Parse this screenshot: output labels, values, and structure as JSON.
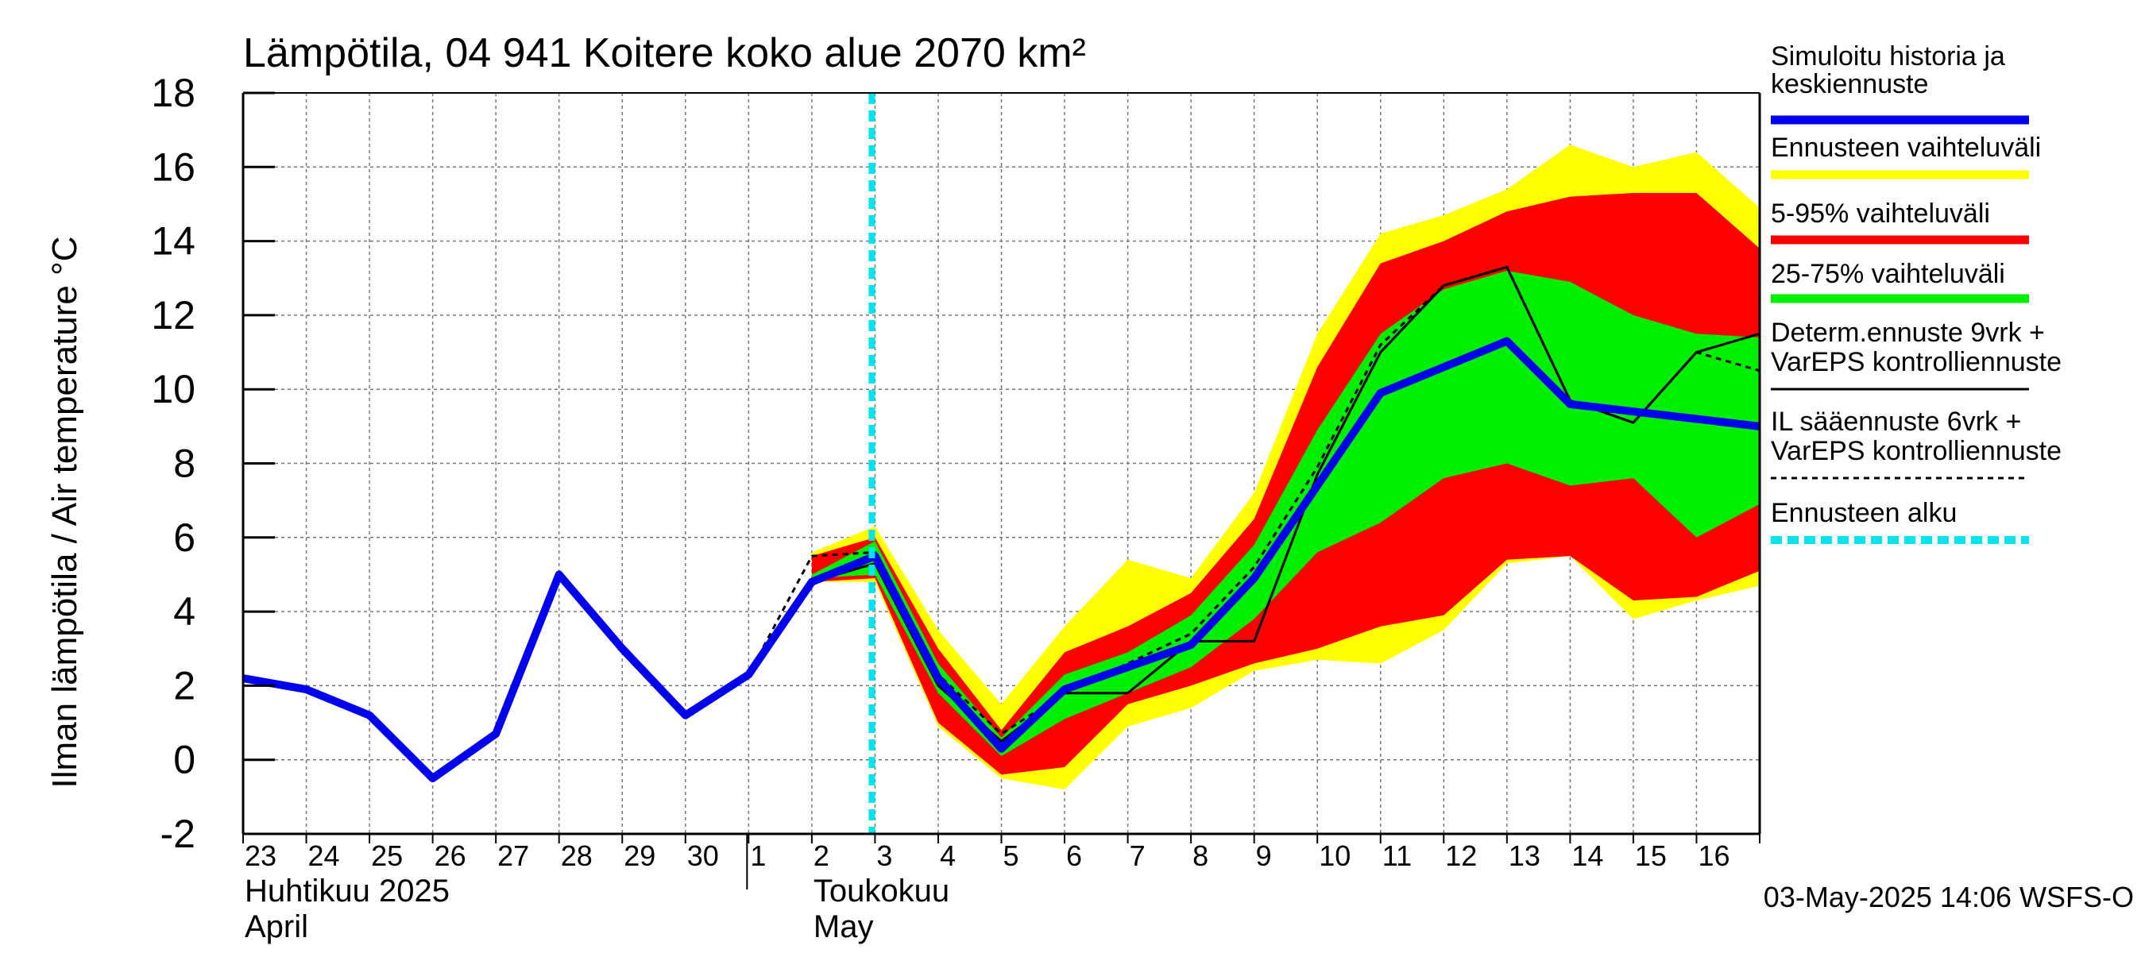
{
  "chart_data": {
    "type": "area",
    "title": "Lämpötila, 04 941 Koitere koko alue 2070 km²",
    "ylabel": "Ilman lämpötila / Air temperature   °C",
    "ylim": [
      -2,
      18
    ],
    "yticks": [
      -2,
      0,
      2,
      4,
      6,
      8,
      10,
      12,
      14,
      16,
      18
    ],
    "xlim": [
      0,
      24
    ],
    "grid": true,
    "x_tick_labels": [
      {
        "x": 0,
        "label": "23"
      },
      {
        "x": 1,
        "label": "24"
      },
      {
        "x": 2,
        "label": "25"
      },
      {
        "x": 3,
        "label": "26"
      },
      {
        "x": 4,
        "label": "27"
      },
      {
        "x": 5,
        "label": "28"
      },
      {
        "x": 6,
        "label": "29"
      },
      {
        "x": 7,
        "label": "30"
      },
      {
        "x": 8,
        "label": "1"
      },
      {
        "x": 9,
        "label": "2"
      },
      {
        "x": 10,
        "label": "3"
      },
      {
        "x": 11,
        "label": "4"
      },
      {
        "x": 12,
        "label": "5"
      },
      {
        "x": 13,
        "label": "6"
      },
      {
        "x": 14,
        "label": "7"
      },
      {
        "x": 15,
        "label": "8"
      },
      {
        "x": 16,
        "label": "9"
      },
      {
        "x": 17,
        "label": "10"
      },
      {
        "x": 18,
        "label": "11"
      },
      {
        "x": 19,
        "label": "12"
      },
      {
        "x": 20,
        "label": "13"
      },
      {
        "x": 21,
        "label": "14"
      },
      {
        "x": 22,
        "label": "15"
      },
      {
        "x": 23,
        "label": "16"
      }
    ],
    "month_labels": [
      {
        "x": 0,
        "line1": "Huhtikuu  2025",
        "line2": "April"
      },
      {
        "x": 9,
        "line1": "Toukokuu",
        "line2": "May"
      }
    ],
    "forecast_start_x": 10,
    "bands": [
      {
        "name": "Ennusteen vaihteluväli",
        "color": "#ffff00",
        "x": [
          9,
          10,
          11,
          12,
          13,
          14,
          15,
          16,
          17,
          18,
          19,
          20,
          21,
          22,
          23,
          24
        ],
        "upper": [
          5.6,
          6.3,
          3.5,
          1.5,
          3.6,
          5.4,
          4.9,
          7.2,
          11.5,
          14.2,
          14.7,
          15.4,
          16.6,
          16.0,
          16.4,
          14.9
        ],
        "lower": [
          4.8,
          4.8,
          0.9,
          -0.5,
          -0.8,
          0.9,
          1.4,
          2.4,
          2.7,
          2.6,
          3.5,
          5.3,
          5.5,
          3.8,
          4.3,
          4.7
        ]
      },
      {
        "name": "5-95% vaihteluväli",
        "color": "#ff0000",
        "x": [
          9,
          10,
          11,
          12,
          13,
          14,
          15,
          16,
          17,
          18,
          19,
          20,
          21,
          22,
          23,
          24
        ],
        "upper": [
          5.5,
          6.0,
          3.0,
          0.8,
          2.9,
          3.6,
          4.5,
          6.5,
          10.6,
          13.4,
          14.0,
          14.8,
          15.2,
          15.3,
          15.3,
          13.8
        ],
        "lower": [
          4.8,
          4.9,
          1.0,
          -0.4,
          -0.2,
          1.5,
          2.0,
          2.6,
          3.0,
          3.6,
          3.9,
          5.4,
          5.5,
          4.3,
          4.4,
          5.1
        ]
      },
      {
        "name": "25-75% vaihteluväli",
        "color": "#00ee00",
        "x": [
          9,
          10,
          11,
          12,
          13,
          14,
          15,
          16,
          17,
          18,
          19,
          20,
          21,
          22,
          23,
          24
        ],
        "upper": [
          5.0,
          5.9,
          2.6,
          0.6,
          2.3,
          2.9,
          3.9,
          5.8,
          8.9,
          11.5,
          12.7,
          13.2,
          12.9,
          12.0,
          11.5,
          11.4
        ],
        "lower": [
          4.9,
          5.0,
          1.8,
          0.1,
          1.1,
          1.8,
          2.5,
          3.8,
          5.6,
          6.4,
          7.6,
          8.0,
          7.4,
          7.6,
          6.0,
          6.9
        ]
      }
    ],
    "series": [
      {
        "name": "Simuloitu historia ja keskiennuste",
        "color": "#0000ee",
        "x": [
          0,
          1,
          2,
          3,
          4,
          5,
          6,
          7,
          8,
          9,
          10,
          11,
          12,
          13,
          14,
          15,
          16,
          17,
          18,
          19,
          20,
          21,
          22,
          23,
          24
        ],
        "y": [
          2.2,
          1.9,
          1.2,
          -0.5,
          0.7,
          5.0,
          3.0,
          1.2,
          2.3,
          4.8,
          5.5,
          2.2,
          0.3,
          1.9,
          2.5,
          3.1,
          4.9,
          7.4,
          9.9,
          10.6,
          11.3,
          9.6,
          9.4,
          9.2,
          9.0
        ]
      },
      {
        "name": "Determ.ennuste 9vrk + VarEPS kontrolliennuste",
        "color": "#000000",
        "x": [
          8,
          9,
          10,
          11,
          12,
          13,
          14,
          15,
          16,
          17,
          18,
          19,
          20,
          21,
          22,
          23,
          24
        ],
        "y": [
          2.3,
          4.8,
          5.3,
          2.0,
          0.5,
          1.8,
          1.8,
          3.2,
          3.2,
          7.7,
          11.0,
          12.8,
          13.3,
          9.7,
          9.1,
          11.0,
          11.5
        ]
      },
      {
        "name": "IL sääennuste 6vrk  +   VarEPS kontrolliennuste",
        "color": "#000000",
        "dashed": true,
        "x": [
          8,
          9,
          10,
          11,
          12,
          13,
          14,
          15,
          16,
          17,
          18,
          19,
          20,
          21,
          22,
          23,
          24
        ],
        "y": [
          2.3,
          5.5,
          5.6,
          2.3,
          0.7,
          1.8,
          2.6,
          3.4,
          5.2,
          7.9,
          11.2,
          12.8,
          13.3,
          9.7,
          9.1,
          11.0,
          10.5
        ]
      }
    ],
    "legend": {
      "placement": "right",
      "entries": [
        {
          "text1": "Simuloitu historia ja",
          "text2": "keskiennuste",
          "style": "thick",
          "color": "#0000ee"
        },
        {
          "text1": "Ennusteen vaihteluväli",
          "text2": "",
          "style": "thick",
          "color": "#ffff00"
        },
        {
          "text1": "5-95% vaihteluväli",
          "text2": "",
          "style": "thick",
          "color": "#ff0000"
        },
        {
          "text1": "25-75% vaihteluväli",
          "text2": "",
          "style": "thick",
          "color": "#00ee00"
        },
        {
          "text1": "Determ.ennuste 9vrk +",
          "text2": "VarEPS kontrolliennuste",
          "style": "thin",
          "color": "#000000"
        },
        {
          "text1": "IL sääennuste 6vrk  +",
          "text2": "  VarEPS kontrolliennuste",
          "style": "dashed",
          "color": "#000000"
        },
        {
          "text1": "Ennusteen alku",
          "text2": "",
          "style": "cyan-dashed",
          "color": "#00e5ee"
        }
      ]
    },
    "footer": "03-May-2025 14:06 WSFS-O"
  }
}
